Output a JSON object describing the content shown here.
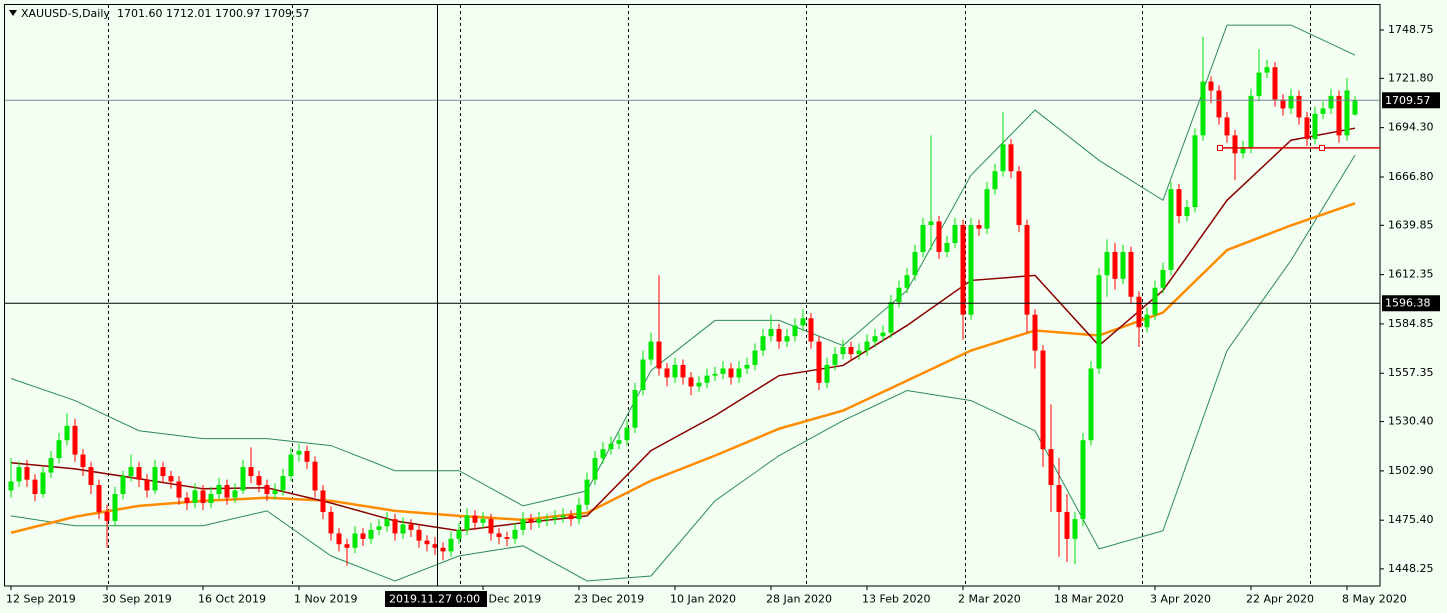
{
  "chart_data": {
    "type": "candlestick",
    "title": "XAUUSD-S,Daily",
    "ohlc_text": "1701.60 1712.01 1700.97 1709.57",
    "ylim": [
      1438.7,
      1762.7
    ],
    "yticks": [
      1748.75,
      {
        "value": 1721.8,
        "label": "1721.80"
      },
      {
        "value": 1694.3,
        "label": "1694.30"
      },
      {
        "value": 1666.8,
        "label": "1666.80"
      },
      1639.85,
      1612.35,
      1584.85,
      1557.35,
      {
        "value": 1530.4,
        "label": "1530.40"
      },
      {
        "value": 1502.9,
        "label": "1502.90"
      },
      {
        "value": 1475.4,
        "label": "1475.40"
      },
      1448.25
    ],
    "up_color": "#00e600",
    "down_color": "#ff0000",
    "current_price": {
      "value": 1709.57,
      "label": "1709.57",
      "color": "#778899"
    },
    "crosshair": {
      "date": "2019.11.27 0:00",
      "price": 1596.38
    },
    "level_line": {
      "value": 1683,
      "color": "#e00000"
    },
    "categories": [
      "12 Sep 2019",
      null,
      null,
      null,
      null,
      null,
      null,
      null,
      null,
      null,
      null,
      null,
      "30 Sep 2019",
      null,
      null,
      null,
      null,
      null,
      null,
      null,
      null,
      null,
      null,
      null,
      "16 Oct 2019",
      null,
      null,
      null,
      null,
      null,
      null,
      null,
      null,
      null,
      null,
      null,
      "1 Nov 2019",
      null,
      null,
      null,
      null,
      null,
      null,
      null,
      null,
      null,
      null,
      null,
      null,
      null,
      null,
      null,
      null,
      null,
      null,
      null,
      null,
      null,
      null,
      "5 Dec 2019",
      null,
      null,
      null,
      null,
      null,
      null,
      null,
      null,
      null,
      null,
      null,
      "23 Dec 2019",
      null,
      null,
      null,
      null,
      null,
      null,
      null,
      null,
      null,
      null,
      null,
      "10 Jan 2020",
      null,
      null,
      null,
      null,
      null,
      null,
      null,
      null,
      null,
      null,
      null,
      "28 Jan 2020",
      null,
      null,
      null,
      null,
      null,
      null,
      null,
      null,
      null,
      null,
      null,
      "13 Feb 2020",
      null,
      null,
      null,
      null,
      null,
      null,
      null,
      null,
      null,
      null,
      null,
      "2 Mar 2020",
      null,
      null,
      null,
      null,
      null,
      null,
      null,
      null,
      null,
      null,
      null,
      "18 Mar 2020",
      null,
      null,
      null,
      null,
      null,
      null,
      null,
      null,
      null,
      null,
      null,
      "3 Apr 2020",
      null,
      null,
      null,
      null,
      null,
      null,
      null,
      null,
      null,
      null,
      null,
      "22 Apr 2020",
      null,
      null,
      null,
      null,
      null,
      null,
      null,
      null,
      null,
      null,
      null,
      "8 May 2020",
      null
    ],
    "ohlc": [
      [
        1492,
        1510,
        1488,
        1497
      ],
      [
        1497,
        1508,
        1494,
        1505
      ],
      [
        1505,
        1509,
        1494,
        1498
      ],
      [
        1498,
        1501,
        1486,
        1490
      ],
      [
        1490,
        1505,
        1488,
        1502
      ],
      [
        1502,
        1514,
        1499,
        1510
      ],
      [
        1510,
        1524,
        1507,
        1520
      ],
      [
        1520,
        1535,
        1517,
        1528
      ],
      [
        1528,
        1532,
        1508,
        1512
      ],
      [
        1512,
        1515,
        1500,
        1505
      ],
      [
        1505,
        1508,
        1490,
        1495
      ],
      [
        1495,
        1498,
        1476,
        1480
      ],
      [
        1480,
        1484,
        1460,
        1475
      ],
      [
        1475,
        1494,
        1472,
        1490
      ],
      [
        1490,
        1503,
        1487,
        1500
      ],
      [
        1500,
        1512,
        1497,
        1505
      ],
      [
        1505,
        1508,
        1494,
        1498
      ],
      [
        1498,
        1501,
        1488,
        1492
      ],
      [
        1492,
        1509,
        1490,
        1505
      ],
      [
        1505,
        1508,
        1496,
        1500
      ],
      [
        1500,
        1503,
        1493,
        1497
      ],
      [
        1497,
        1500,
        1484,
        1488
      ],
      [
        1488,
        1491,
        1481,
        1485
      ],
      [
        1485,
        1496,
        1482,
        1492
      ],
      [
        1492,
        1495,
        1481,
        1485
      ],
      [
        1485,
        1494,
        1482,
        1490
      ],
      [
        1490,
        1499,
        1487,
        1495
      ],
      [
        1495,
        1498,
        1484,
        1488
      ],
      [
        1488,
        1496,
        1485,
        1492
      ],
      [
        1492,
        1509,
        1490,
        1505
      ],
      [
        1505,
        1516,
        1496,
        1500
      ],
      [
        1500,
        1503,
        1491,
        1495
      ],
      [
        1495,
        1498,
        1486,
        1490
      ],
      [
        1490,
        1496,
        1487,
        1492
      ],
      [
        1492,
        1504,
        1489,
        1500
      ],
      [
        1500,
        1516,
        1497,
        1512
      ],
      [
        1512,
        1518,
        1508,
        1514
      ],
      [
        1514,
        1517,
        1504,
        1508
      ],
      [
        1508,
        1511,
        1488,
        1492
      ],
      [
        1492,
        1495,
        1476,
        1480
      ],
      [
        1480,
        1483,
        1464,
        1468
      ],
      [
        1468,
        1471,
        1458,
        1462
      ],
      [
        1462,
        1465,
        1450,
        1460
      ],
      [
        1460,
        1472,
        1457,
        1468
      ],
      [
        1468,
        1471,
        1461,
        1465
      ],
      [
        1465,
        1474,
        1462,
        1470
      ],
      [
        1470,
        1476,
        1467,
        1472
      ],
      [
        1472,
        1480,
        1469,
        1476
      ],
      [
        1476,
        1479,
        1464,
        1468
      ],
      [
        1468,
        1477,
        1465,
        1473
      ],
      [
        1473,
        1476,
        1466,
        1470
      ],
      [
        1470,
        1473,
        1460,
        1464
      ],
      [
        1464,
        1467,
        1458,
        1462
      ],
      [
        1462,
        1466,
        1456,
        1460
      ],
      [
        1460,
        1463,
        1453,
        1458
      ],
      [
        1458,
        1469,
        1455,
        1465
      ],
      [
        1465,
        1474,
        1462,
        1470
      ],
      [
        1470,
        1482,
        1467,
        1478
      ],
      [
        1478,
        1481,
        1470,
        1474
      ],
      [
        1474,
        1480,
        1471,
        1476
      ],
      [
        1476,
        1479,
        1464,
        1468
      ],
      [
        1468,
        1471,
        1462,
        1466
      ],
      [
        1466,
        1469,
        1461,
        1465
      ],
      [
        1465,
        1474,
        1462,
        1470
      ],
      [
        1470,
        1480,
        1467,
        1476
      ],
      [
        1476,
        1479,
        1470,
        1474
      ],
      [
        1474,
        1480,
        1471,
        1476
      ],
      [
        1476,
        1479,
        1472,
        1476
      ],
      [
        1476,
        1481,
        1473,
        1477
      ],
      [
        1477,
        1482,
        1474,
        1478
      ],
      [
        1478,
        1481,
        1472,
        1476
      ],
      [
        1476,
        1488,
        1473,
        1484
      ],
      [
        1484,
        1502,
        1481,
        1498
      ],
      [
        1498,
        1514,
        1495,
        1510
      ],
      [
        1510,
        1519,
        1507,
        1515
      ],
      [
        1515,
        1522,
        1512,
        1518
      ],
      [
        1518,
        1524,
        1515,
        1520
      ],
      [
        1520,
        1531,
        1517,
        1527
      ],
      [
        1527,
        1552,
        1524,
        1548
      ],
      [
        1548,
        1570,
        1545,
        1565
      ],
      [
        1565,
        1580,
        1562,
        1575
      ],
      [
        1575,
        1612,
        1556,
        1560
      ],
      [
        1560,
        1563,
        1550,
        1555
      ],
      [
        1555,
        1566,
        1552,
        1562
      ],
      [
        1562,
        1565,
        1551,
        1555
      ],
      [
        1555,
        1558,
        1545,
        1550
      ],
      [
        1550,
        1556,
        1547,
        1552
      ],
      [
        1552,
        1560,
        1549,
        1556
      ],
      [
        1556,
        1561,
        1553,
        1557
      ],
      [
        1557,
        1564,
        1554,
        1560
      ],
      [
        1560,
        1563,
        1551,
        1555
      ],
      [
        1555,
        1564,
        1552,
        1560
      ],
      [
        1560,
        1566,
        1557,
        1562
      ],
      [
        1562,
        1574,
        1559,
        1570
      ],
      [
        1570,
        1582,
        1567,
        1578
      ],
      [
        1578,
        1590,
        1575,
        1582
      ],
      [
        1582,
        1585,
        1571,
        1575
      ],
      [
        1575,
        1582,
        1572,
        1578
      ],
      [
        1578,
        1588,
        1575,
        1584
      ],
      [
        1584,
        1593,
        1581,
        1588
      ],
      [
        1588,
        1591,
        1571,
        1575
      ],
      [
        1575,
        1578,
        1548,
        1552
      ],
      [
        1552,
        1566,
        1549,
        1562
      ],
      [
        1562,
        1572,
        1559,
        1568
      ],
      [
        1568,
        1576,
        1565,
        1572
      ],
      [
        1572,
        1575,
        1564,
        1568
      ],
      [
        1568,
        1574,
        1565,
        1570
      ],
      [
        1570,
        1579,
        1567,
        1575
      ],
      [
        1575,
        1582,
        1572,
        1578
      ],
      [
        1578,
        1584,
        1575,
        1580
      ],
      [
        1580,
        1601,
        1577,
        1597
      ],
      [
        1597,
        1609,
        1594,
        1605
      ],
      [
        1605,
        1616,
        1602,
        1612
      ],
      [
        1612,
        1629,
        1609,
        1625
      ],
      [
        1625,
        1644,
        1622,
        1640
      ],
      [
        1640,
        1690,
        1626,
        1642
      ],
      [
        1642,
        1645,
        1621,
        1625
      ],
      [
        1625,
        1634,
        1622,
        1630
      ],
      [
        1630,
        1644,
        1627,
        1640
      ],
      [
        1640,
        1643,
        1576,
        1590
      ],
      [
        1590,
        1644,
        1587,
        1640
      ],
      [
        1640,
        1643,
        1634,
        1638
      ],
      [
        1638,
        1664,
        1635,
        1660
      ],
      [
        1660,
        1674,
        1657,
        1670
      ],
      [
        1670,
        1703,
        1667,
        1685
      ],
      [
        1685,
        1688,
        1666,
        1670
      ],
      [
        1670,
        1673,
        1636,
        1640
      ],
      [
        1640,
        1643,
        1580,
        1590
      ],
      [
        1590,
        1593,
        1560,
        1570
      ],
      [
        1570,
        1573,
        1505,
        1515
      ],
      [
        1515,
        1540,
        1480,
        1495
      ],
      [
        1495,
        1510,
        1455,
        1480
      ],
      [
        1480,
        1490,
        1452,
        1465
      ],
      [
        1465,
        1480,
        1451,
        1476
      ],
      [
        1476,
        1524,
        1472,
        1520
      ],
      [
        1520,
        1564,
        1517,
        1560
      ],
      [
        1560,
        1616,
        1557,
        1612
      ],
      [
        1612,
        1632,
        1600,
        1625
      ],
      [
        1625,
        1630,
        1604,
        1610
      ],
      [
        1610,
        1629,
        1607,
        1625
      ],
      [
        1625,
        1628,
        1596,
        1600
      ],
      [
        1600,
        1603,
        1572,
        1583
      ],
      [
        1583,
        1594,
        1580,
        1590
      ],
      [
        1590,
        1609,
        1587,
        1605
      ],
      [
        1605,
        1619,
        1602,
        1615
      ],
      [
        1615,
        1664,
        1612,
        1660
      ],
      [
        1660,
        1663,
        1641,
        1645
      ],
      [
        1645,
        1654,
        1642,
        1650
      ],
      [
        1650,
        1694,
        1647,
        1690
      ],
      [
        1690,
        1745,
        1687,
        1720
      ],
      [
        1720,
        1723,
        1708,
        1715
      ],
      [
        1715,
        1718,
        1696,
        1700
      ],
      [
        1700,
        1703,
        1686,
        1690
      ],
      [
        1690,
        1693,
        1665,
        1680
      ],
      [
        1680,
        1687,
        1677,
        1683
      ],
      [
        1683,
        1716,
        1680,
        1712
      ],
      [
        1712,
        1738,
        1709,
        1725
      ],
      [
        1725,
        1732,
        1722,
        1728
      ],
      [
        1728,
        1731,
        1706,
        1710
      ],
      [
        1710,
        1713,
        1701,
        1705
      ],
      [
        1705,
        1716,
        1702,
        1712
      ],
      [
        1712,
        1715,
        1696,
        1700
      ],
      [
        1700,
        1703,
        1684,
        1688
      ],
      [
        1688,
        1706,
        1685,
        1702
      ],
      [
        1702,
        1709,
        1699,
        1705
      ],
      [
        1705,
        1716,
        1702,
        1712
      ],
      [
        1712,
        1715,
        1686,
        1690
      ],
      [
        1690,
        1722,
        1687,
        1715
      ],
      [
        1701.6,
        1712.01,
        1700.97,
        1709.57
      ]
    ],
    "indicators": {
      "x": [
        0,
        8,
        16,
        24,
        32,
        40,
        48,
        56,
        64,
        72,
        80,
        88,
        96,
        104,
        112,
        120,
        128,
        136,
        144,
        152,
        160,
        168
      ],
      "series": [
        {
          "color": "#2e8b57",
          "width": 1,
          "values": [
            1554.4,
            1542.1,
            1525.3,
            1520.9,
            1520.9,
            1517,
            1503,
            1503,
            1483.4,
            1491.8,
            1558.8,
            1586.8,
            1586.8,
            1572.8,
            1603.5,
            1667.8,
            1704.1,
            1676.1,
            1653.8,
            1751.5,
            1751.5,
            1734.8
          ]
        },
        {
          "color": "#2e8b57",
          "width": 1,
          "values": [
            1477.8,
            1472.3,
            1472.3,
            1472.3,
            1480.6,
            1455.5,
            1441.5,
            1455.5,
            1461.1,
            1441.5,
            1444.3,
            1486.2,
            1511.4,
            1530.9,
            1547.7,
            1542.1,
            1525.3,
            1459.4,
            1469.5,
            1570,
            1620.3,
            1679
          ]
        },
        {
          "color": "#ff8c00",
          "width": 2.5,
          "values": [
            1468.4,
            1477.3,
            1483.4,
            1486.2,
            1487.9,
            1486.2,
            1480.6,
            1477.8,
            1475.6,
            1479.5,
            1497.4,
            1511.4,
            1526.4,
            1536.5,
            1553.2,
            1570,
            1581.2,
            1578.4,
            1591.2,
            1626,
            1639.8,
            1652.1
          ]
        },
        {
          "color": "#8b0000",
          "width": 1.5,
          "values": [
            1507.4,
            1504,
            1498.5,
            1492.9,
            1493.5,
            1485,
            1475,
            1469.5,
            1474,
            1477.8,
            1514.2,
            1533.7,
            1556,
            1561.7,
            1584,
            1609.1,
            1611.9,
            1572.8,
            1603.5,
            1653.8,
            1687.3,
            1694
          ]
        }
      ]
    }
  }
}
